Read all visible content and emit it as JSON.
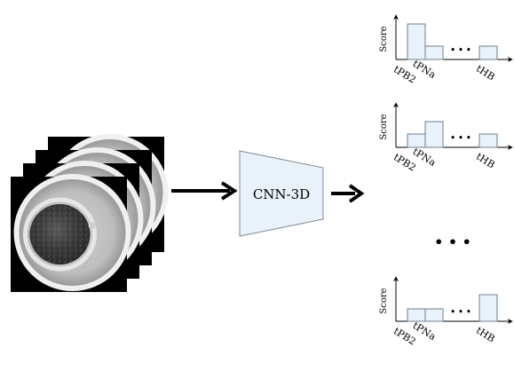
{
  "pipeline": {
    "model_label": "CNN-3D",
    "frame_count": 4,
    "stack_colors": {
      "frame_background": "#000000",
      "well_ring": "#f0f0f0",
      "embryo_fill": "#3a3a3a",
      "zona_ring": "#e6e6e6"
    },
    "trapezoid_fill": "#e9f1fa",
    "trapezoid_stroke": "#7f8a96",
    "arrow_color": "#000000"
  },
  "outputs": {
    "vertical_ellipsis": "• • •",
    "bar_fill": "#e9f1fa",
    "bar_stroke": "#6d7f91",
    "axis_color": "#000000",
    "charts": [
      {
        "ylabel": "Score",
        "tick_labels": [
          "tPB2",
          "tPNa",
          "tHB"
        ],
        "gap_label": "• • •",
        "bar_scores": [
          0.85,
          0.32,
          0.32
        ]
      },
      {
        "ylabel": "Score",
        "tick_labels": [
          "tPB2",
          "tPNa",
          "tHB"
        ],
        "gap_label": "• • •",
        "bar_scores": [
          0.32,
          0.61,
          0.32
        ]
      },
      {
        "ylabel": "Score",
        "tick_labels": [
          "tPB2",
          "tPNa",
          "tHB"
        ],
        "gap_label": "• • •",
        "bar_scores": [
          0.3,
          0.3,
          0.64
        ]
      }
    ]
  }
}
